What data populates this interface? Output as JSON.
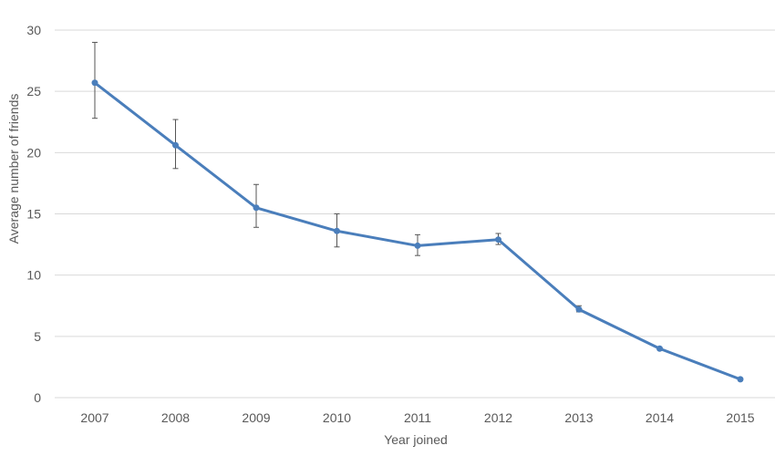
{
  "chart_data": {
    "type": "line",
    "xlabel": "Year joined",
    "ylabel": "Average number of friends",
    "ylim": [
      0,
      30
    ],
    "yticks": [
      "0",
      "5",
      "10",
      "15",
      "20",
      "25",
      "30"
    ],
    "categories": [
      "2007",
      "2008",
      "2009",
      "2010",
      "2011",
      "2012",
      "2013",
      "2014",
      "2015"
    ],
    "series": [
      {
        "values": [
          25.7,
          20.6,
          15.5,
          13.6,
          12.4,
          12.9,
          7.2,
          4.0,
          1.5
        ],
        "error_low": [
          22.8,
          18.7,
          13.9,
          12.3,
          11.6,
          12.5,
          7.0,
          3.9,
          1.4
        ],
        "error_high": [
          29.0,
          22.7,
          17.4,
          15.0,
          13.3,
          13.4,
          7.5,
          4.1,
          1.6
        ],
        "color": "#4a7ebb"
      }
    ],
    "grid": true,
    "legend": "none",
    "gridColor": "#d9d9d9",
    "errorBarColor": "#555555"
  }
}
